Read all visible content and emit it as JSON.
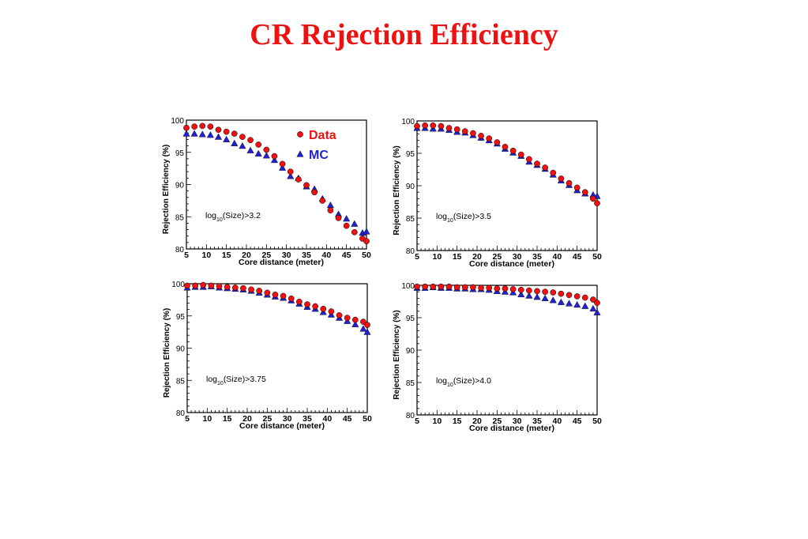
{
  "title": "CR Rejection Efficiency",
  "colors": {
    "title": "#ee1111",
    "data": "#ee1111",
    "mc": "#2222cc",
    "axes": "#000000"
  },
  "legend": {
    "items": [
      {
        "label": "Data",
        "marker": "circle",
        "color": "#ee1111"
      },
      {
        "label": "MC",
        "marker": "triangle",
        "color": "#2222cc"
      }
    ],
    "placement": "top-right of first panel"
  },
  "chart_data": [
    {
      "type": "scatter",
      "annotation_base": "log",
      "annotation_sub": "10",
      "annotation_cond": "(Size)>3.2",
      "xlabel": "Core distance (meter)",
      "ylabel": "Rejection Efficiency (%)",
      "xlim": [
        5,
        50
      ],
      "ylim": [
        80,
        100
      ],
      "xticks": [
        5,
        10,
        15,
        20,
        25,
        30,
        35,
        40,
        45,
        50
      ],
      "yticks": [
        80,
        85,
        90,
        95,
        100
      ],
      "series": [
        {
          "name": "Data",
          "marker": "circle",
          "color": "#ee1111",
          "x": [
            5,
            7,
            9,
            11,
            13,
            15,
            17,
            19,
            21,
            23,
            25,
            27,
            29,
            31,
            33,
            35,
            37,
            39,
            41,
            43,
            45,
            47,
            49,
            50
          ],
          "y": [
            98.8,
            99.0,
            99.1,
            99.0,
            98.5,
            98.2,
            97.9,
            97.4,
            96.9,
            96.2,
            95.4,
            94.4,
            93.2,
            92.0,
            90.8,
            89.9,
            88.8,
            87.5,
            86.0,
            84.8,
            83.6,
            82.6,
            81.6,
            81.2
          ]
        },
        {
          "name": "MC",
          "marker": "triangle",
          "color": "#2222cc",
          "x": [
            5,
            7,
            9,
            11,
            13,
            15,
            17,
            19,
            21,
            23,
            25,
            27,
            29,
            31,
            33,
            35,
            37,
            39,
            41,
            43,
            45,
            47,
            49,
            50
          ],
          "y": [
            97.9,
            97.9,
            97.8,
            97.7,
            97.4,
            97.0,
            96.4,
            96.0,
            95.3,
            94.8,
            94.5,
            93.8,
            92.6,
            91.3,
            91.0,
            89.7,
            89.3,
            87.8,
            86.8,
            85.4,
            84.7,
            83.9,
            82.5,
            82.7
          ]
        }
      ]
    },
    {
      "type": "scatter",
      "annotation_base": "log",
      "annotation_sub": "10",
      "annotation_cond": "(Size)>3.5",
      "xlabel": "Core distance (meter)",
      "ylabel": "Rejection Efficiency (%)",
      "xlim": [
        5,
        50
      ],
      "ylim": [
        80,
        100
      ],
      "xticks": [
        5,
        10,
        15,
        20,
        25,
        30,
        35,
        40,
        45,
        50
      ],
      "yticks": [
        80,
        85,
        90,
        95,
        100
      ],
      "series": [
        {
          "name": "Data",
          "marker": "circle",
          "color": "#ee1111",
          "x": [
            5,
            7,
            9,
            11,
            13,
            15,
            17,
            19,
            21,
            23,
            25,
            27,
            29,
            31,
            33,
            35,
            37,
            39,
            41,
            43,
            45,
            47,
            49,
            50
          ],
          "y": [
            99.2,
            99.3,
            99.3,
            99.2,
            98.9,
            98.7,
            98.4,
            98.1,
            97.7,
            97.3,
            96.7,
            96.0,
            95.4,
            94.8,
            94.1,
            93.4,
            92.8,
            92.0,
            91.1,
            90.4,
            89.7,
            89.0,
            88.0,
            87.3
          ]
        },
        {
          "name": "MC",
          "marker": "triangle",
          "color": "#2222cc",
          "x": [
            5,
            7,
            9,
            11,
            13,
            15,
            17,
            19,
            21,
            23,
            25,
            27,
            29,
            31,
            33,
            35,
            37,
            39,
            41,
            43,
            45,
            47,
            49,
            50
          ],
          "y": [
            98.9,
            98.9,
            98.8,
            98.8,
            98.6,
            98.3,
            98.2,
            97.8,
            97.4,
            97.0,
            96.5,
            95.7,
            95.1,
            94.6,
            93.7,
            93.2,
            92.6,
            91.7,
            90.8,
            90.1,
            89.3,
            88.8,
            88.6,
            88.4
          ]
        }
      ]
    },
    {
      "type": "scatter",
      "annotation_base": "log",
      "annotation_sub": "10",
      "annotation_cond": "(Size)>3.75",
      "xlabel": "Core distance (meter)",
      "ylabel": "Rejection Efficiency (%)",
      "xlim": [
        5,
        50
      ],
      "ylim": [
        80,
        100
      ],
      "xticks": [
        5,
        10,
        15,
        20,
        25,
        30,
        35,
        40,
        45,
        50
      ],
      "yticks": [
        80,
        85,
        90,
        95,
        100
      ],
      "series": [
        {
          "name": "Data",
          "marker": "circle",
          "color": "#ee1111",
          "x": [
            5,
            7,
            9,
            11,
            13,
            15,
            17,
            19,
            21,
            23,
            25,
            27,
            29,
            31,
            33,
            35,
            37,
            39,
            41,
            43,
            45,
            47,
            49,
            50
          ],
          "y": [
            99.7,
            99.7,
            99.8,
            99.7,
            99.6,
            99.5,
            99.4,
            99.3,
            99.1,
            98.9,
            98.6,
            98.3,
            98.1,
            97.7,
            97.2,
            96.8,
            96.5,
            96.1,
            95.7,
            95.1,
            94.7,
            94.4,
            94.1,
            93.6
          ]
        },
        {
          "name": "MC",
          "marker": "triangle",
          "color": "#2222cc",
          "x": [
            5,
            7,
            9,
            11,
            13,
            15,
            17,
            19,
            21,
            23,
            25,
            27,
            29,
            31,
            33,
            35,
            37,
            39,
            41,
            43,
            45,
            47,
            49,
            50
          ],
          "y": [
            99.4,
            99.5,
            99.5,
            99.6,
            99.4,
            99.3,
            99.2,
            99.1,
            98.9,
            98.6,
            98.3,
            98.0,
            97.8,
            97.4,
            96.9,
            96.4,
            96.1,
            95.6,
            95.2,
            94.7,
            94.2,
            93.7,
            93.0,
            92.5
          ]
        }
      ]
    },
    {
      "type": "scatter",
      "annotation_base": "log",
      "annotation_sub": "10",
      "annotation_cond": "(Size)>4.0",
      "xlabel": "Core distance (meter)",
      "ylabel": "Rejection Efficiency (%)",
      "xlim": [
        5,
        50
      ],
      "ylim": [
        80,
        100
      ],
      "xticks": [
        5,
        10,
        15,
        20,
        25,
        30,
        35,
        40,
        45,
        50
      ],
      "yticks": [
        80,
        85,
        90,
        95,
        100
      ],
      "series": [
        {
          "name": "Data",
          "marker": "circle",
          "color": "#ee1111",
          "x": [
            5,
            7,
            9,
            11,
            13,
            15,
            17,
            19,
            21,
            23,
            25,
            27,
            29,
            31,
            33,
            35,
            37,
            39,
            41,
            43,
            45,
            47,
            49,
            50
          ],
          "y": [
            99.8,
            99.8,
            99.8,
            99.8,
            99.8,
            99.7,
            99.7,
            99.7,
            99.6,
            99.6,
            99.5,
            99.5,
            99.4,
            99.3,
            99.2,
            99.1,
            99.0,
            98.9,
            98.7,
            98.5,
            98.3,
            98.1,
            97.8,
            97.3
          ]
        },
        {
          "name": "MC",
          "marker": "triangle",
          "color": "#2222cc",
          "x": [
            5,
            7,
            9,
            11,
            13,
            15,
            17,
            19,
            21,
            23,
            25,
            27,
            29,
            31,
            33,
            35,
            37,
            39,
            41,
            43,
            45,
            47,
            49,
            50
          ],
          "y": [
            99.6,
            99.6,
            99.7,
            99.6,
            99.6,
            99.5,
            99.5,
            99.4,
            99.4,
            99.3,
            99.1,
            99.0,
            98.9,
            98.6,
            98.4,
            98.2,
            98.0,
            97.7,
            97.4,
            97.2,
            97.0,
            96.8,
            96.4,
            95.8
          ]
        }
      ]
    }
  ]
}
